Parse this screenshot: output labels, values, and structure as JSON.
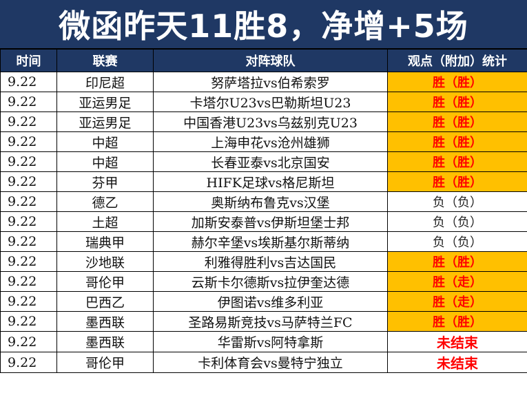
{
  "title": "微函昨天11胜8，净增+5场",
  "headers": {
    "time": "时间",
    "league": "联赛",
    "match": "对阵球队",
    "stat": "观点（附加）统计"
  },
  "rows": [
    {
      "date": "9.22",
      "league": "印尼超",
      "match": "努萨塔拉vs伯希索罗",
      "result": "胜（胜）",
      "status": "win"
    },
    {
      "date": "9.22",
      "league": "亚运男足",
      "match": "卡塔尔U23vs巴勒斯坦U23",
      "result": "胜（胜）",
      "status": "win"
    },
    {
      "date": "9.22",
      "league": "亚运男足",
      "match": "中国香港U23vs乌兹别克U23",
      "result": "胜（胜）",
      "status": "win"
    },
    {
      "date": "9.22",
      "league": "中超",
      "match": "上海申花vs沧州雄狮",
      "result": "胜（胜）",
      "status": "win"
    },
    {
      "date": "9.22",
      "league": "中超",
      "match": "长春亚泰vs北京国安",
      "result": "胜（胜）",
      "status": "win"
    },
    {
      "date": "9.22",
      "league": "芬甲",
      "match": "HIFK足球vs格尼斯坦",
      "result": "胜（胜）",
      "status": "win"
    },
    {
      "date": "9.22",
      "league": "德乙",
      "match": "奥斯纳布鲁克vs汉堡",
      "result": "负（负）",
      "status": "lose"
    },
    {
      "date": "9.22",
      "league": "土超",
      "match": "加斯安泰普vs伊斯坦堡士邦",
      "result": "负（负）",
      "status": "lose"
    },
    {
      "date": "9.22",
      "league": "瑞典甲",
      "match": "赫尔辛堡vs埃斯基尔斯蒂纳",
      "result": "负（负）",
      "status": "lose"
    },
    {
      "date": "9.22",
      "league": "沙地联",
      "match": "利雅得胜利vs吉达国民",
      "result": "胜（胜）",
      "status": "win"
    },
    {
      "date": "9.22",
      "league": "哥伦甲",
      "match": "云斯卡尔德斯vs拉伊奎达德",
      "result": "胜（走）",
      "status": "win"
    },
    {
      "date": "9.22",
      "league": "巴西乙",
      "match": "伊图诺vs维多利亚",
      "result": "胜（走）",
      "status": "win"
    },
    {
      "date": "9.22",
      "league": "墨西联",
      "match": "圣路易斯竞技vs马萨特兰FC",
      "result": "胜（胜）",
      "status": "win"
    },
    {
      "date": "9.22",
      "league": "墨西联",
      "match": "华雷斯vs阿特拿斯",
      "result": "未结束",
      "status": "pending"
    },
    {
      "date": "9.22",
      "league": "哥伦甲",
      "match": "卡利体育会vs曼特宁独立",
      "result": "未结束",
      "status": "pending"
    }
  ],
  "colors": {
    "header_bg": "#1f3864",
    "win_bg": "#ffc000",
    "win_text": "#ff0000",
    "pending_text": "#ff0000"
  }
}
